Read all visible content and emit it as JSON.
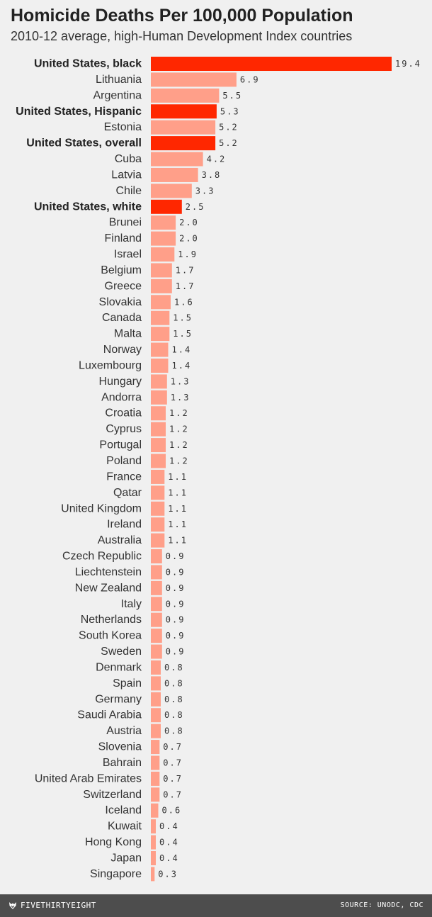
{
  "footer": {
    "brand": "FIVETHIRTYEIGHT",
    "brand_icon": "fox-logo-icon",
    "source": "SOURCE: UNODC, CDC"
  },
  "colors": {
    "background": "#f0f0f0",
    "highlight_bar": "#ff2700",
    "default_bar": "#ff9f89",
    "footer_bg": "#4d4d4d"
  },
  "chart_data": {
    "type": "bar",
    "orientation": "horizontal",
    "title": "Homicide Deaths Per 100,000 Population",
    "subtitle": "2010-12 average, high-Human Development Index countries",
    "xlabel": "",
    "ylabel": "",
    "xlim": [
      0,
      19.4
    ],
    "grid": false,
    "categories": [
      "United States, black",
      "Lithuania",
      "Argentina",
      "United States, Hispanic",
      "Estonia",
      "United States, overall",
      "Cuba",
      "Latvia",
      "Chile",
      "United States, white",
      "Brunei",
      "Finland",
      "Israel",
      "Belgium",
      "Greece",
      "Slovakia",
      "Canada",
      "Malta",
      "Norway",
      "Luxembourg",
      "Hungary",
      "Andorra",
      "Croatia",
      "Cyprus",
      "Portugal",
      "Poland",
      "France",
      "Qatar",
      "United Kingdom",
      "Ireland",
      "Australia",
      "Czech Republic",
      "Liechtenstein",
      "New Zealand",
      "Italy",
      "Netherlands",
      "South Korea",
      "Sweden",
      "Denmark",
      "Spain",
      "Germany",
      "Saudi Arabia",
      "Austria",
      "Slovenia",
      "Bahrain",
      "United Arab Emirates",
      "Switzerland",
      "Iceland",
      "Kuwait",
      "Hong Kong",
      "Japan",
      "Singapore"
    ],
    "values": [
      19.4,
      6.9,
      5.5,
      5.3,
      5.2,
      5.2,
      4.2,
      3.8,
      3.3,
      2.5,
      2.0,
      2.0,
      1.9,
      1.7,
      1.7,
      1.6,
      1.5,
      1.5,
      1.4,
      1.4,
      1.3,
      1.3,
      1.2,
      1.2,
      1.2,
      1.2,
      1.1,
      1.1,
      1.1,
      1.1,
      1.1,
      0.9,
      0.9,
      0.9,
      0.9,
      0.9,
      0.9,
      0.9,
      0.8,
      0.8,
      0.8,
      0.8,
      0.8,
      0.7,
      0.7,
      0.7,
      0.7,
      0.6,
      0.4,
      0.4,
      0.4,
      0.3
    ],
    "value_labels": [
      "19.4",
      "6.9",
      "5.5",
      "5.3",
      "5.2",
      "5.2",
      "4.2",
      "3.8",
      "3.3",
      "2.5",
      "2.0",
      "2.0",
      "1.9",
      "1.7",
      "1.7",
      "1.6",
      "1.5",
      "1.5",
      "1.4",
      "1.4",
      "1.3",
      "1.3",
      "1.2",
      "1.2",
      "1.2",
      "1.2",
      "1.1",
      "1.1",
      "1.1",
      "1.1",
      "1.1",
      "0.9",
      "0.9",
      "0.9",
      "0.9",
      "0.9",
      "0.9",
      "0.9",
      "0.8",
      "0.8",
      "0.8",
      "0.8",
      "0.8",
      "0.7",
      "0.7",
      "0.7",
      "0.7",
      "0.6",
      "0.4",
      "0.4",
      "0.4",
      "0.3"
    ],
    "highlighted": [
      "United States, black",
      "United States, Hispanic",
      "United States, overall",
      "United States, white"
    ]
  }
}
